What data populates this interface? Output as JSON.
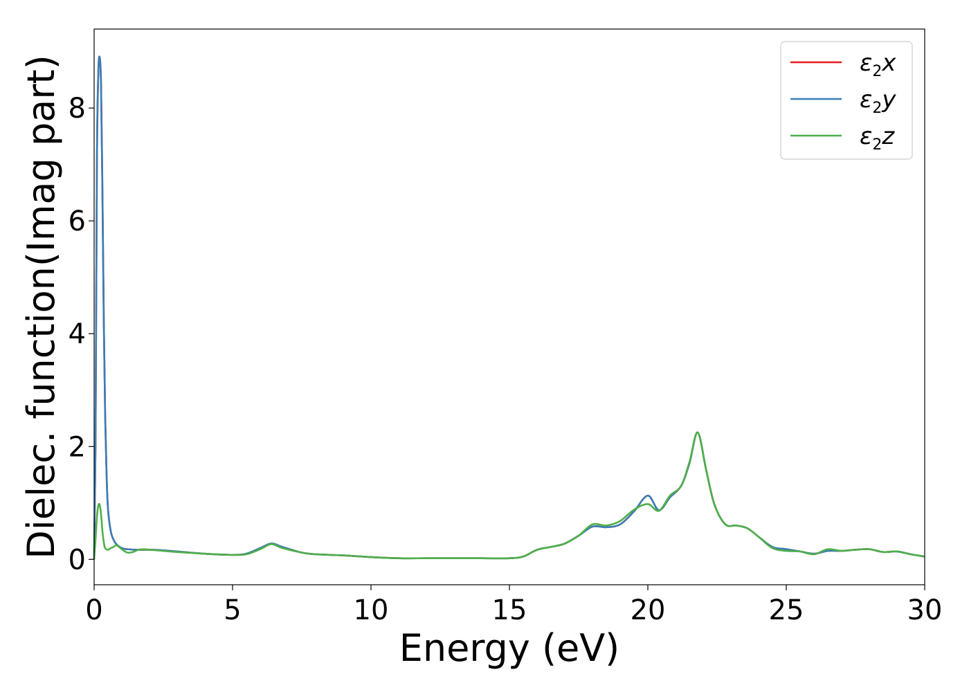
{
  "chart_data": {
    "type": "line",
    "xlabel": "Energy (eV)",
    "ylabel": "Dielec. function(Imag part)",
    "xlim": [
      0,
      30
    ],
    "ylim": [
      -0.45,
      9.4
    ],
    "xticks": [
      0,
      5,
      10,
      15,
      20,
      25,
      30
    ],
    "yticks": [
      0,
      2,
      4,
      6,
      8
    ],
    "grid": false,
    "legend_position": "top-right",
    "series": [
      {
        "name": "ε2x",
        "label_main": "ε",
        "label_sub": "2",
        "label_var": "x",
        "color": "#e41a1c",
        "x": [
          0,
          0.05,
          0.1,
          0.15,
          0.2,
          0.25,
          0.3,
          0.35,
          0.4,
          0.45,
          0.5,
          0.6,
          0.7,
          0.8,
          1.0,
          1.2,
          1.5,
          2.0,
          2.5,
          3.0,
          4.0,
          5.0,
          5.5,
          6.0,
          6.4,
          6.8,
          7.5,
          8.0,
          9.0,
          10.0,
          11.0,
          12.0,
          13.0,
          14.0,
          15.0,
          15.5,
          16.0,
          16.5,
          17.0,
          17.5,
          18.0,
          18.5,
          19.0,
          19.5,
          20.0,
          20.4,
          20.8,
          21.2,
          21.5,
          21.8,
          22.1,
          22.4,
          22.8,
          23.2,
          23.6,
          24.0,
          24.5,
          25.0,
          25.5,
          26.0,
          26.5,
          27.0,
          27.5,
          28.0,
          28.5,
          29.0,
          29.5,
          30.0
        ],
        "y": [
          0,
          2.0,
          7.0,
          8.6,
          8.9,
          8.4,
          6.5,
          4.2,
          2.5,
          1.5,
          0.9,
          0.5,
          0.35,
          0.27,
          0.2,
          0.18,
          0.17,
          0.17,
          0.16,
          0.14,
          0.1,
          0.08,
          0.1,
          0.2,
          0.28,
          0.22,
          0.12,
          0.09,
          0.07,
          0.04,
          0.02,
          0.02,
          0.02,
          0.02,
          0.02,
          0.05,
          0.17,
          0.22,
          0.28,
          0.42,
          0.58,
          0.57,
          0.62,
          0.85,
          1.13,
          0.87,
          1.1,
          1.3,
          1.7,
          2.25,
          1.6,
          0.98,
          0.62,
          0.6,
          0.55,
          0.4,
          0.22,
          0.18,
          0.14,
          0.1,
          0.15,
          0.15,
          0.17,
          0.18,
          0.13,
          0.14,
          0.09,
          0.05
        ]
      },
      {
        "name": "ε2y",
        "label_main": "ε",
        "label_sub": "2",
        "label_var": "y",
        "color": "#377eb8",
        "x": [
          0,
          0.05,
          0.1,
          0.15,
          0.2,
          0.25,
          0.3,
          0.35,
          0.4,
          0.45,
          0.5,
          0.6,
          0.7,
          0.8,
          1.0,
          1.2,
          1.5,
          2.0,
          2.5,
          3.0,
          4.0,
          5.0,
          5.5,
          6.0,
          6.4,
          6.8,
          7.5,
          8.0,
          9.0,
          10.0,
          11.0,
          12.0,
          13.0,
          14.0,
          15.0,
          15.5,
          16.0,
          16.5,
          17.0,
          17.5,
          18.0,
          18.5,
          19.0,
          19.5,
          20.0,
          20.4,
          20.8,
          21.2,
          21.5,
          21.8,
          22.1,
          22.4,
          22.8,
          23.2,
          23.6,
          24.0,
          24.5,
          25.0,
          25.5,
          26.0,
          26.5,
          27.0,
          27.5,
          28.0,
          28.5,
          29.0,
          29.5,
          30.0
        ],
        "y": [
          0,
          2.0,
          7.0,
          8.6,
          8.9,
          8.4,
          6.5,
          4.2,
          2.5,
          1.5,
          0.9,
          0.5,
          0.35,
          0.27,
          0.2,
          0.18,
          0.17,
          0.17,
          0.16,
          0.14,
          0.1,
          0.08,
          0.1,
          0.2,
          0.28,
          0.22,
          0.12,
          0.09,
          0.07,
          0.04,
          0.02,
          0.02,
          0.02,
          0.02,
          0.02,
          0.05,
          0.17,
          0.22,
          0.28,
          0.42,
          0.58,
          0.57,
          0.62,
          0.85,
          1.13,
          0.87,
          1.1,
          1.3,
          1.7,
          2.25,
          1.6,
          0.98,
          0.62,
          0.6,
          0.55,
          0.4,
          0.22,
          0.18,
          0.14,
          0.1,
          0.15,
          0.15,
          0.17,
          0.18,
          0.13,
          0.14,
          0.09,
          0.05
        ]
      },
      {
        "name": "ε2z",
        "label_main": "ε",
        "label_sub": "2",
        "label_var": "z",
        "color": "#4daf4a",
        "x": [
          0,
          0.05,
          0.1,
          0.15,
          0.2,
          0.25,
          0.3,
          0.35,
          0.4,
          0.5,
          0.6,
          0.7,
          0.8,
          0.9,
          1.0,
          1.2,
          1.4,
          1.6,
          1.8,
          2.0,
          2.5,
          3.0,
          4.0,
          5.0,
          5.5,
          6.0,
          6.4,
          6.8,
          7.5,
          8.0,
          9.0,
          10.0,
          11.0,
          12.0,
          13.0,
          14.0,
          15.0,
          15.5,
          16.0,
          16.5,
          17.0,
          17.5,
          18.0,
          18.5,
          19.0,
          19.5,
          20.0,
          20.4,
          20.8,
          21.2,
          21.5,
          21.8,
          22.1,
          22.4,
          22.8,
          23.2,
          23.6,
          24.0,
          24.5,
          25.0,
          25.5,
          26.0,
          26.5,
          27.0,
          27.5,
          28.0,
          28.5,
          29.0,
          29.5,
          30.0
        ],
        "y": [
          0,
          0.35,
          0.75,
          0.95,
          0.97,
          0.8,
          0.5,
          0.3,
          0.2,
          0.17,
          0.2,
          0.22,
          0.25,
          0.22,
          0.18,
          0.12,
          0.13,
          0.17,
          0.18,
          0.17,
          0.15,
          0.13,
          0.1,
          0.08,
          0.09,
          0.18,
          0.27,
          0.2,
          0.12,
          0.09,
          0.07,
          0.04,
          0.02,
          0.02,
          0.02,
          0.02,
          0.02,
          0.05,
          0.17,
          0.22,
          0.28,
          0.42,
          0.62,
          0.6,
          0.68,
          0.88,
          0.98,
          0.86,
          1.13,
          1.3,
          1.72,
          2.25,
          1.6,
          0.98,
          0.62,
          0.6,
          0.55,
          0.4,
          0.2,
          0.15,
          0.14,
          0.09,
          0.18,
          0.15,
          0.17,
          0.18,
          0.13,
          0.14,
          0.09,
          0.05
        ]
      }
    ]
  }
}
